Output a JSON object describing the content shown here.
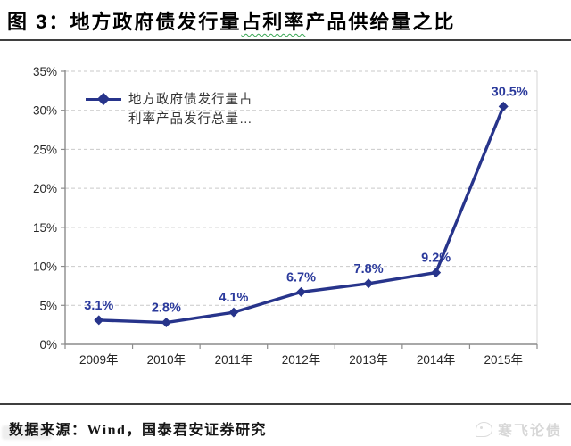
{
  "title": {
    "prefix": "图 3：地方政府债发行量",
    "wavy_segment": "占利率",
    "suffix": "产品供给量之比"
  },
  "legend": {
    "line1": "地方政府债发行量占",
    "line2": "利率产品发行总量…"
  },
  "chart_data": {
    "type": "line",
    "title": "地方政府债发行量占利率产品供给量之比",
    "series": [
      {
        "name": "地方政府债发行量占利率产品发行总量…",
        "values": [
          3.1,
          2.8,
          4.1,
          6.7,
          7.8,
          9.2,
          30.5
        ],
        "point_labels": [
          "3.1%",
          "2.8%",
          "4.1%",
          "6.7%",
          "7.8%",
          "9.2%",
          "30.5%"
        ]
      }
    ],
    "categories": [
      "2009年",
      "2010年",
      "2011年",
      "2012年",
      "2013年",
      "2014年",
      "2015年"
    ],
    "xlabel": "",
    "ylabel": "",
    "ylim": [
      0,
      35
    ],
    "ytick_step": 5,
    "ytick_labels": [
      "0%",
      "5%",
      "10%",
      "15%",
      "20%",
      "25%",
      "30%",
      "35%"
    ],
    "grid": true,
    "gridline_style": "dashed",
    "legend_position": "top-left",
    "colors": {
      "line": "#27348B",
      "point_label": "#2B3A9C",
      "grid": "#c9c9c9",
      "axis": "#8c8c8c",
      "plot_right_border": "#d5d5d5",
      "tick_label": "#262626"
    }
  },
  "footer": {
    "source": "数据来源：Wind，国泰君安证券研究",
    "watermark": "寒飞论债"
  }
}
